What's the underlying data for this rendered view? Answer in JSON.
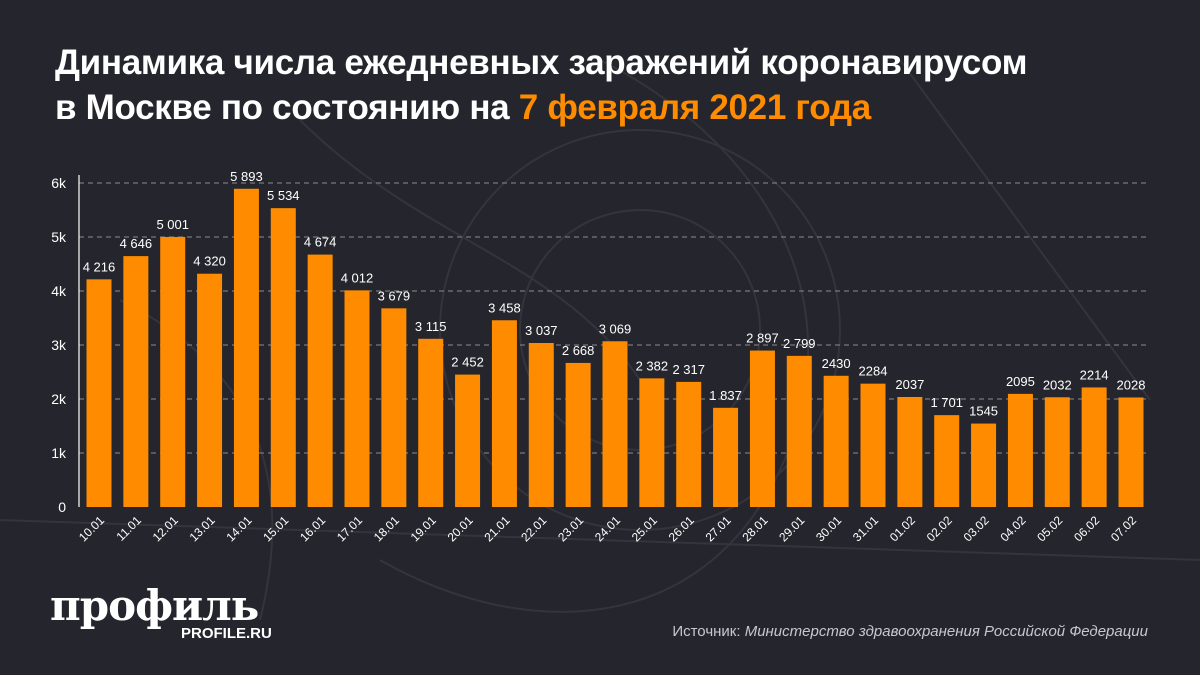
{
  "title": {
    "line1": "Динамика числа ежедневных заражений коронавирусом",
    "line2_prefix": "в Москве по состоянию на ",
    "line2_highlight": "7 февраля 2021 года"
  },
  "colors": {
    "background": "#25252d",
    "bar": "#ff8c00",
    "highlight": "#ff8c00",
    "grid": "#8a8a90"
  },
  "chart_data": {
    "type": "bar",
    "title": "",
    "xlabel": "",
    "ylabel": "",
    "ylim": [
      0,
      6000
    ],
    "y_ticks": [
      0,
      1000,
      2000,
      3000,
      4000,
      5000,
      6000
    ],
    "y_tick_labels": [
      "0",
      "1k",
      "2k",
      "3k",
      "4k",
      "5k",
      "6k"
    ],
    "grid": "horizontal dashed",
    "categories": [
      "10.01",
      "11.01",
      "12.01",
      "13.01",
      "14.01",
      "15.01",
      "16.01",
      "17.01",
      "18.01",
      "19.01",
      "20.01",
      "21.01",
      "22.01",
      "23.01",
      "24.01",
      "25.01",
      "26.01",
      "27.01",
      "28.01",
      "29.01",
      "30.01",
      "31.01",
      "01.02",
      "02.02",
      "03.02",
      "04.02",
      "05.02",
      "06.02",
      "07.02"
    ],
    "values": [
      4216,
      4646,
      5001,
      4320,
      5893,
      5534,
      4674,
      4012,
      3679,
      3115,
      2452,
      3458,
      3037,
      2668,
      3069,
      2382,
      2317,
      1837,
      2897,
      2799,
      2430,
      2284,
      2037,
      1701,
      1545,
      2095,
      2032,
      2214,
      2028
    ],
    "data_labels": [
      "4 216",
      "4 646",
      "5 001",
      "4 320",
      "5 893",
      "5 534",
      "4 674",
      "4 012",
      "3 679",
      "3 115",
      "2 452",
      "3 458",
      "3 037",
      "2 668",
      "3 069",
      "2 382",
      "2 317",
      "1 837",
      "2 897",
      "2 799",
      "2430",
      "2284",
      "2037",
      "1 701",
      "1545",
      "2095",
      "2032",
      "2214",
      "2028"
    ]
  },
  "logo": {
    "word": "профиль",
    "site": "PROFILE.RU"
  },
  "source": {
    "label": "Источник: ",
    "name": "Министерство здравоохранения Российской Федерации"
  }
}
